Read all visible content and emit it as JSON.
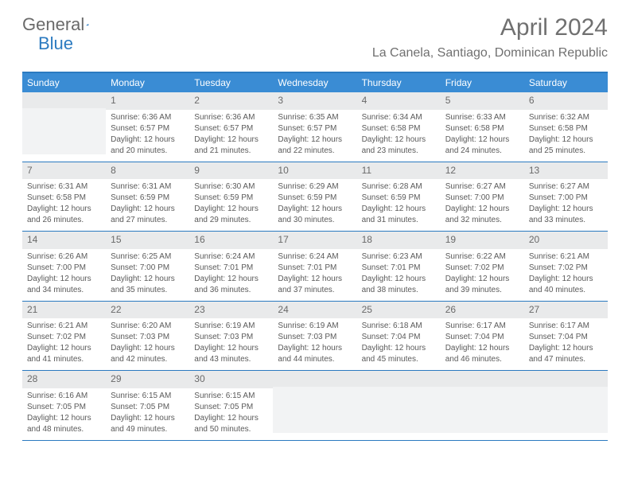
{
  "brand": {
    "name_a": "General",
    "name_b": "Blue"
  },
  "title": "April 2024",
  "location": "La Canela, Santiago, Dominican Republic",
  "colors": {
    "header_bg": "#3a8cd4",
    "border": "#2b7ac0",
    "date_bg": "#e9eaeb",
    "empty_body_bg": "#f2f3f4",
    "text": "#5a5a5a"
  },
  "day_names": [
    "Sunday",
    "Monday",
    "Tuesday",
    "Wednesday",
    "Thursday",
    "Friday",
    "Saturday"
  ],
  "weeks": [
    [
      null,
      {
        "n": "1",
        "sr": "Sunrise: 6:36 AM",
        "ss": "Sunset: 6:57 PM",
        "d1": "Daylight: 12 hours",
        "d2": "and 20 minutes."
      },
      {
        "n": "2",
        "sr": "Sunrise: 6:36 AM",
        "ss": "Sunset: 6:57 PM",
        "d1": "Daylight: 12 hours",
        "d2": "and 21 minutes."
      },
      {
        "n": "3",
        "sr": "Sunrise: 6:35 AM",
        "ss": "Sunset: 6:57 PM",
        "d1": "Daylight: 12 hours",
        "d2": "and 22 minutes."
      },
      {
        "n": "4",
        "sr": "Sunrise: 6:34 AM",
        "ss": "Sunset: 6:58 PM",
        "d1": "Daylight: 12 hours",
        "d2": "and 23 minutes."
      },
      {
        "n": "5",
        "sr": "Sunrise: 6:33 AM",
        "ss": "Sunset: 6:58 PM",
        "d1": "Daylight: 12 hours",
        "d2": "and 24 minutes."
      },
      {
        "n": "6",
        "sr": "Sunrise: 6:32 AM",
        "ss": "Sunset: 6:58 PM",
        "d1": "Daylight: 12 hours",
        "d2": "and 25 minutes."
      }
    ],
    [
      {
        "n": "7",
        "sr": "Sunrise: 6:31 AM",
        "ss": "Sunset: 6:58 PM",
        "d1": "Daylight: 12 hours",
        "d2": "and 26 minutes."
      },
      {
        "n": "8",
        "sr": "Sunrise: 6:31 AM",
        "ss": "Sunset: 6:59 PM",
        "d1": "Daylight: 12 hours",
        "d2": "and 27 minutes."
      },
      {
        "n": "9",
        "sr": "Sunrise: 6:30 AM",
        "ss": "Sunset: 6:59 PM",
        "d1": "Daylight: 12 hours",
        "d2": "and 29 minutes."
      },
      {
        "n": "10",
        "sr": "Sunrise: 6:29 AM",
        "ss": "Sunset: 6:59 PM",
        "d1": "Daylight: 12 hours",
        "d2": "and 30 minutes."
      },
      {
        "n": "11",
        "sr": "Sunrise: 6:28 AM",
        "ss": "Sunset: 6:59 PM",
        "d1": "Daylight: 12 hours",
        "d2": "and 31 minutes."
      },
      {
        "n": "12",
        "sr": "Sunrise: 6:27 AM",
        "ss": "Sunset: 7:00 PM",
        "d1": "Daylight: 12 hours",
        "d2": "and 32 minutes."
      },
      {
        "n": "13",
        "sr": "Sunrise: 6:27 AM",
        "ss": "Sunset: 7:00 PM",
        "d1": "Daylight: 12 hours",
        "d2": "and 33 minutes."
      }
    ],
    [
      {
        "n": "14",
        "sr": "Sunrise: 6:26 AM",
        "ss": "Sunset: 7:00 PM",
        "d1": "Daylight: 12 hours",
        "d2": "and 34 minutes."
      },
      {
        "n": "15",
        "sr": "Sunrise: 6:25 AM",
        "ss": "Sunset: 7:00 PM",
        "d1": "Daylight: 12 hours",
        "d2": "and 35 minutes."
      },
      {
        "n": "16",
        "sr": "Sunrise: 6:24 AM",
        "ss": "Sunset: 7:01 PM",
        "d1": "Daylight: 12 hours",
        "d2": "and 36 minutes."
      },
      {
        "n": "17",
        "sr": "Sunrise: 6:24 AM",
        "ss": "Sunset: 7:01 PM",
        "d1": "Daylight: 12 hours",
        "d2": "and 37 minutes."
      },
      {
        "n": "18",
        "sr": "Sunrise: 6:23 AM",
        "ss": "Sunset: 7:01 PM",
        "d1": "Daylight: 12 hours",
        "d2": "and 38 minutes."
      },
      {
        "n": "19",
        "sr": "Sunrise: 6:22 AM",
        "ss": "Sunset: 7:02 PM",
        "d1": "Daylight: 12 hours",
        "d2": "and 39 minutes."
      },
      {
        "n": "20",
        "sr": "Sunrise: 6:21 AM",
        "ss": "Sunset: 7:02 PM",
        "d1": "Daylight: 12 hours",
        "d2": "and 40 minutes."
      }
    ],
    [
      {
        "n": "21",
        "sr": "Sunrise: 6:21 AM",
        "ss": "Sunset: 7:02 PM",
        "d1": "Daylight: 12 hours",
        "d2": "and 41 minutes."
      },
      {
        "n": "22",
        "sr": "Sunrise: 6:20 AM",
        "ss": "Sunset: 7:03 PM",
        "d1": "Daylight: 12 hours",
        "d2": "and 42 minutes."
      },
      {
        "n": "23",
        "sr": "Sunrise: 6:19 AM",
        "ss": "Sunset: 7:03 PM",
        "d1": "Daylight: 12 hours",
        "d2": "and 43 minutes."
      },
      {
        "n": "24",
        "sr": "Sunrise: 6:19 AM",
        "ss": "Sunset: 7:03 PM",
        "d1": "Daylight: 12 hours",
        "d2": "and 44 minutes."
      },
      {
        "n": "25",
        "sr": "Sunrise: 6:18 AM",
        "ss": "Sunset: 7:04 PM",
        "d1": "Daylight: 12 hours",
        "d2": "and 45 minutes."
      },
      {
        "n": "26",
        "sr": "Sunrise: 6:17 AM",
        "ss": "Sunset: 7:04 PM",
        "d1": "Daylight: 12 hours",
        "d2": "and 46 minutes."
      },
      {
        "n": "27",
        "sr": "Sunrise: 6:17 AM",
        "ss": "Sunset: 7:04 PM",
        "d1": "Daylight: 12 hours",
        "d2": "and 47 minutes."
      }
    ],
    [
      {
        "n": "28",
        "sr": "Sunrise: 6:16 AM",
        "ss": "Sunset: 7:05 PM",
        "d1": "Daylight: 12 hours",
        "d2": "and 48 minutes."
      },
      {
        "n": "29",
        "sr": "Sunrise: 6:15 AM",
        "ss": "Sunset: 7:05 PM",
        "d1": "Daylight: 12 hours",
        "d2": "and 49 minutes."
      },
      {
        "n": "30",
        "sr": "Sunrise: 6:15 AM",
        "ss": "Sunset: 7:05 PM",
        "d1": "Daylight: 12 hours",
        "d2": "and 50 minutes."
      },
      null,
      null,
      null,
      null
    ]
  ]
}
